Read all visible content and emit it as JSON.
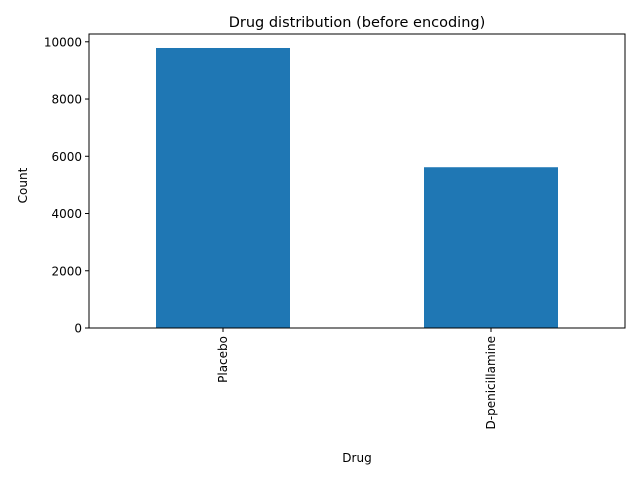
{
  "chart_data": {
    "type": "bar",
    "title": "Drug distribution (before encoding)",
    "xlabel": "Drug",
    "ylabel": "Count",
    "categories": [
      "Placebo",
      "D-penicillamine"
    ],
    "values": [
      9783,
      5617
    ],
    "ylim": [
      0,
      10272
    ],
    "yticks": [
      0,
      2000,
      4000,
      6000,
      8000,
      10000
    ],
    "bar_color": "#1f77b4",
    "grid": false,
    "legend": "none"
  }
}
